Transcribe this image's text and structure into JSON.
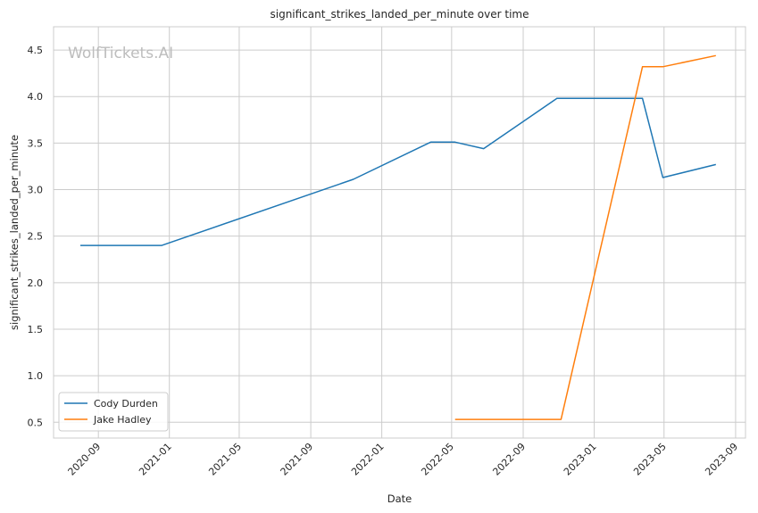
{
  "chart_data": {
    "type": "line",
    "title": "significant_strikes_landed_per_minute over time",
    "xlabel": "Date",
    "ylabel": "significant_strikes_landed_per_minute",
    "watermark": "WolfTickets.AI",
    "x_ticks": [
      "2020-09",
      "2021-01",
      "2021-05",
      "2021-09",
      "2022-01",
      "2022-05",
      "2022-09",
      "2023-01",
      "2023-05",
      "2023-09"
    ],
    "y_ticks": [
      "0.5",
      "1.0",
      "1.5",
      "2.0",
      "2.5",
      "3.0",
      "3.5",
      "4.0",
      "4.5"
    ],
    "xlim": [
      "2020-06-16",
      "2023-09-18"
    ],
    "ylim": [
      0.33,
      4.75
    ],
    "grid": true,
    "legend_position": "lower-left",
    "series": [
      {
        "name": "Cody Durden",
        "color": "#1f77b4",
        "x": [
          "2020-08-01",
          "2020-12-19",
          "2021-11-13",
          "2022-03-26",
          "2022-05-07",
          "2022-06-25",
          "2022-10-29",
          "2023-03-25",
          "2023-04-29",
          "2023-07-29"
        ],
        "y": [
          2.4,
          2.4,
          3.11,
          3.51,
          3.51,
          3.44,
          3.98,
          3.98,
          3.13,
          3.27
        ]
      },
      {
        "name": "Jake Hadley",
        "color": "#ff7f0e",
        "x": [
          "2022-05-07",
          "2022-11-05",
          "2023-03-25",
          "2023-04-29",
          "2023-07-29"
        ],
        "y": [
          0.53,
          0.53,
          4.32,
          4.32,
          4.44
        ]
      }
    ]
  }
}
